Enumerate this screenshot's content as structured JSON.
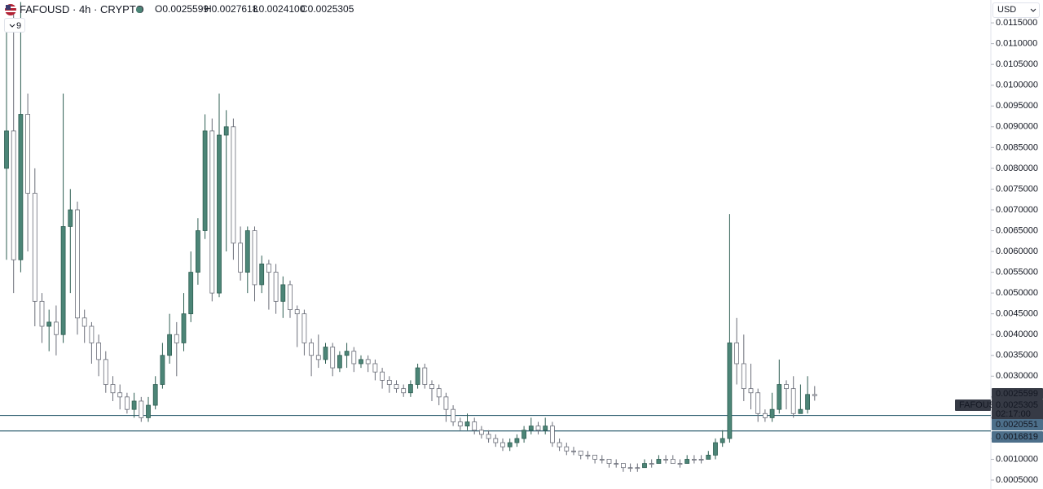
{
  "chart_data": {
    "type": "candlestick",
    "title": "FAFOUSD · 4h · CRYPTO",
    "ohlc_header": [
      "O0.0025599",
      "H0.0027618",
      "L0.0024100",
      "C0.0025305"
    ],
    "indicator_count": "9",
    "currency": "USD",
    "up_color": "#4c8577",
    "down_color": "#ffffff",
    "line_color": "#2f5f70",
    "ylim": [
      0.000285,
      0.01205
    ],
    "yticks": [
      {
        "value": 0.0005,
        "label": "0.0005000"
      },
      {
        "value": 0.001,
        "label": "0.0010000"
      },
      {
        "value": 0.0015,
        "label": "0.0015000"
      },
      {
        "value": 0.002,
        "label": "0.0020000"
      },
      {
        "value": 0.0025,
        "label": "0.0025000"
      },
      {
        "value": 0.003,
        "label": "0.0030000"
      },
      {
        "value": 0.0035,
        "label": "0.0035000"
      },
      {
        "value": 0.004,
        "label": "0.0040000"
      },
      {
        "value": 0.0045,
        "label": "0.0045000"
      },
      {
        "value": 0.005,
        "label": "0.0050000"
      },
      {
        "value": 0.0055,
        "label": "0.0055000"
      },
      {
        "value": 0.006,
        "label": "0.0060000"
      },
      {
        "value": 0.0065,
        "label": "0.0065000"
      },
      {
        "value": 0.007,
        "label": "0.0070000"
      },
      {
        "value": 0.0075,
        "label": "0.0075000"
      },
      {
        "value": 0.008,
        "label": "0.0080000"
      },
      {
        "value": 0.0085,
        "label": "0.0085000"
      },
      {
        "value": 0.009,
        "label": "0.0090000"
      },
      {
        "value": 0.0095,
        "label": "0.0095000"
      },
      {
        "value": 0.01,
        "label": "0.0100000"
      },
      {
        "value": 0.0105,
        "label": "0.0105000"
      },
      {
        "value": 0.011,
        "label": "0.0110000"
      },
      {
        "value": 0.0115,
        "label": "0.0115000"
      }
    ],
    "hlines": [
      0.0020551,
      0.0016819
    ],
    "price_labels": {
      "open": 0.0025599,
      "close": 0.0025305,
      "countdown": "02:17:00",
      "symbol": "FAFOUSD"
    },
    "open": [
      0.008,
      0.0089,
      0.0058,
      0.0093,
      0.0074,
      0.0048,
      0.0042,
      0.0043,
      0.004,
      0.0066,
      0.007,
      0.0044,
      0.0042,
      0.0038,
      0.0034,
      0.0028,
      0.0026,
      0.0025,
      0.0022,
      0.0024,
      0.002,
      0.0023,
      0.0028,
      0.0035,
      0.004,
      0.0038,
      0.0045,
      0.0055,
      0.0065,
      0.0089,
      0.005,
      0.0088,
      0.009,
      0.0062,
      0.0055,
      0.0065,
      0.0052,
      0.0057,
      0.0055,
      0.0048,
      0.0052,
      0.0046,
      0.0045,
      0.0038,
      0.0035,
      0.0034,
      0.0037,
      0.0032,
      0.0035,
      0.0036,
      0.0033,
      0.0034,
      0.0033,
      0.0031,
      0.0029,
      0.0028,
      0.0027,
      0.0026,
      0.0028,
      0.0032,
      0.0028,
      0.0027,
      0.0025,
      0.0022,
      0.0019,
      0.0018,
      0.0019,
      0.0017,
      0.0016,
      0.0015,
      0.0014,
      0.0013,
      0.0014,
      0.0015,
      0.0017,
      0.0018,
      0.0017,
      0.0018,
      0.0014,
      0.0013,
      0.0012,
      0.0012,
      0.0011,
      0.0011,
      0.001,
      0.001,
      0.0009,
      0.0009,
      0.0008,
      0.0008,
      0.0008,
      0.0009,
      0.0009,
      0.001,
      0.001,
      0.0009,
      0.0009,
      0.001,
      0.001,
      0.001,
      0.0011,
      0.0014,
      0.0015,
      0.0038,
      0.0033,
      0.0027,
      0.0026,
      0.0021,
      0.002,
      0.0022,
      0.0028,
      0.0027,
      0.0021,
      0.0022,
      0.0025599
    ],
    "high": [
      0.0115,
      0.0118,
      0.012,
      0.0098,
      0.008,
      0.005,
      0.0046,
      0.0047,
      0.0098,
      0.0075,
      0.0072,
      0.0046,
      0.0043,
      0.004,
      0.0036,
      0.003,
      0.0028,
      0.0026,
      0.0026,
      0.0025,
      0.0025,
      0.003,
      0.0038,
      0.0045,
      0.0043,
      0.005,
      0.006,
      0.0068,
      0.0093,
      0.0092,
      0.0098,
      0.0094,
      0.0092,
      0.0066,
      0.0066,
      0.0066,
      0.0059,
      0.0058,
      0.0057,
      0.0054,
      0.0053,
      0.0047,
      0.0046,
      0.0039,
      0.004,
      0.0038,
      0.0038,
      0.0036,
      0.0038,
      0.0037,
      0.0035,
      0.0035,
      0.0034,
      0.0032,
      0.003,
      0.0029,
      0.0028,
      0.0029,
      0.0033,
      0.0033,
      0.0029,
      0.0028,
      0.0026,
      0.0023,
      0.002,
      0.0021,
      0.002,
      0.0018,
      0.0017,
      0.0016,
      0.0015,
      0.0015,
      0.0016,
      0.0018,
      0.002,
      0.0019,
      0.002,
      0.0019,
      0.0015,
      0.0014,
      0.0013,
      0.0012,
      0.0012,
      0.0011,
      0.0011,
      0.001,
      0.001,
      0.0009,
      0.0009,
      0.0009,
      0.001,
      0.001,
      0.0011,
      0.0011,
      0.0011,
      0.001,
      0.0011,
      0.0011,
      0.0011,
      0.0012,
      0.0015,
      0.0017,
      0.0069,
      0.0044,
      0.004,
      0.0033,
      0.0027,
      0.0022,
      0.0026,
      0.0034,
      0.0029,
      0.003,
      0.0028,
      0.003,
      0.0027618
    ],
    "low": [
      0.0058,
      0.005,
      0.0055,
      0.006,
      0.0042,
      0.0038,
      0.0036,
      0.0035,
      0.0038,
      0.005,
      0.004,
      0.0038,
      0.0033,
      0.003,
      0.0026,
      0.0024,
      0.0022,
      0.0021,
      0.002,
      0.0019,
      0.0019,
      0.0022,
      0.0027,
      0.0033,
      0.003,
      0.0036,
      0.0043,
      0.0052,
      0.0063,
      0.0048,
      0.0049,
      0.006,
      0.0058,
      0.0053,
      0.005,
      0.0048,
      0.005,
      0.0046,
      0.0045,
      0.0044,
      0.0044,
      0.0037,
      0.0035,
      0.003,
      0.0032,
      0.0033,
      0.003,
      0.0031,
      0.0032,
      0.0031,
      0.0032,
      0.0031,
      0.0029,
      0.0027,
      0.0026,
      0.0026,
      0.0025,
      0.0025,
      0.0027,
      0.0027,
      0.0024,
      0.0023,
      0.0019,
      0.0018,
      0.0017,
      0.0017,
      0.0016,
      0.0015,
      0.0014,
      0.0013,
      0.0012,
      0.0012,
      0.0013,
      0.0014,
      0.0016,
      0.0016,
      0.0016,
      0.0013,
      0.0012,
      0.0011,
      0.0011,
      0.001,
      0.001,
      0.0009,
      0.0009,
      0.0008,
      0.0008,
      0.0007,
      0.0007,
      0.0007,
      0.0008,
      0.0008,
      0.0009,
      0.0009,
      0.0009,
      0.0008,
      0.0009,
      0.0009,
      0.0009,
      0.001,
      0.001,
      0.0013,
      0.0014,
      0.0028,
      0.0024,
      0.0022,
      0.0019,
      0.0019,
      0.0019,
      0.0021,
      0.0022,
      0.002,
      0.0021,
      0.0021,
      0.00241
    ],
    "close": [
      0.0089,
      0.0058,
      0.0093,
      0.0074,
      0.0048,
      0.0042,
      0.0043,
      0.004,
      0.0066,
      0.007,
      0.0044,
      0.0042,
      0.0038,
      0.0034,
      0.0028,
      0.0026,
      0.0025,
      0.0022,
      0.0024,
      0.002,
      0.0023,
      0.0028,
      0.0035,
      0.004,
      0.0038,
      0.0045,
      0.0055,
      0.0065,
      0.0089,
      0.005,
      0.0088,
      0.009,
      0.0062,
      0.0055,
      0.0065,
      0.0052,
      0.0057,
      0.0055,
      0.0048,
      0.0052,
      0.0046,
      0.0045,
      0.0038,
      0.0035,
      0.0034,
      0.0037,
      0.0032,
      0.0035,
      0.0036,
      0.0033,
      0.0034,
      0.0033,
      0.0031,
      0.0029,
      0.0028,
      0.0027,
      0.0026,
      0.0028,
      0.0032,
      0.0028,
      0.0027,
      0.0025,
      0.0022,
      0.0019,
      0.0018,
      0.0019,
      0.0017,
      0.0016,
      0.0015,
      0.0014,
      0.0013,
      0.0014,
      0.0015,
      0.0017,
      0.0018,
      0.0017,
      0.0018,
      0.0014,
      0.0013,
      0.0012,
      0.0012,
      0.0011,
      0.0011,
      0.001,
      0.001,
      0.0009,
      0.0009,
      0.0008,
      0.0008,
      0.0008,
      0.0009,
      0.0009,
      0.001,
      0.001,
      0.0009,
      0.0009,
      0.001,
      0.001,
      0.001,
      0.0011,
      0.0014,
      0.0015,
      0.0038,
      0.0033,
      0.0027,
      0.0026,
      0.0021,
      0.002,
      0.0022,
      0.0028,
      0.0027,
      0.0021,
      0.0022,
      0.0025599,
      0.0025305
    ]
  }
}
